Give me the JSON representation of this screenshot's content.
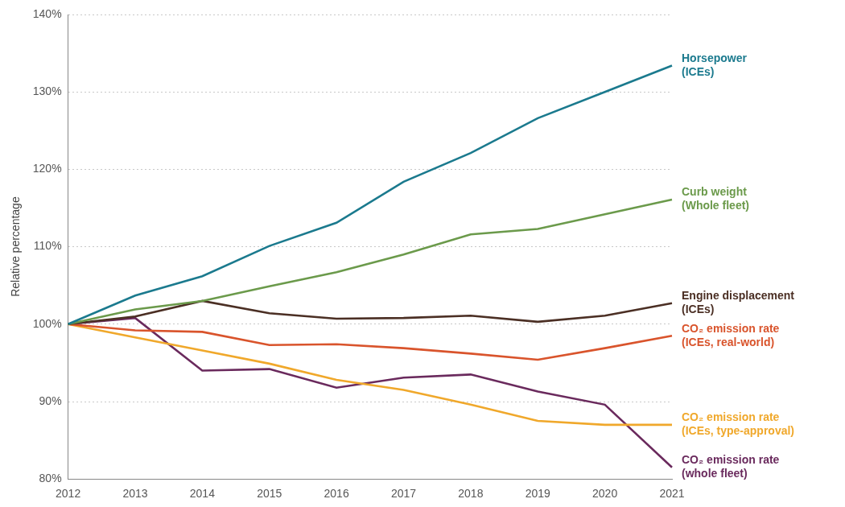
{
  "chart_data": {
    "type": "line",
    "y_label": "Relative percentage",
    "categories": [
      "2012",
      "2013",
      "2014",
      "2015",
      "2016",
      "2017",
      "2018",
      "2019",
      "2020",
      "2021"
    ],
    "series": [
      {
        "name": "Horsepower (ICEs)",
        "color": "#1b7a8e",
        "values": [
          100,
          103.7,
          106.2,
          110.1,
          113.1,
          118.4,
          122.1,
          126.6,
          130.0,
          133.4
        ]
      },
      {
        "name": "Curb weight (Whole fleet)",
        "color": "#6b9a4b",
        "values": [
          100,
          101.9,
          103.0,
          104.9,
          106.7,
          109.0,
          111.6,
          112.3,
          114.2,
          116.1
        ]
      },
      {
        "name": "Engine displacement (ICEs)",
        "color": "#4b2f24",
        "values": [
          100,
          101.0,
          103.0,
          101.4,
          100.7,
          100.8,
          101.1,
          100.3,
          101.1,
          102.7
        ]
      },
      {
        "name": "CO₂ emission rate (ICEs, real-world)",
        "color": "#d9542c",
        "values": [
          100,
          99.2,
          99.0,
          97.3,
          97.4,
          96.9,
          96.2,
          95.4,
          96.9,
          98.5
        ]
      },
      {
        "name": "CO₂ emission rate (ICEs, type-approval)",
        "color": "#f0a82b",
        "values": [
          100,
          98.3,
          96.6,
          94.9,
          92.8,
          91.5,
          89.6,
          87.5,
          87.0,
          87.0
        ]
      },
      {
        "name": "CO₂ emission rate (whole fleet)",
        "color": "#6a2a5d",
        "values": [
          100,
          100.8,
          94.0,
          94.2,
          91.8,
          93.1,
          93.5,
          91.3,
          89.6,
          81.5
        ]
      }
    ],
    "ylim": [
      80,
      140
    ],
    "yticks": [
      {
        "value": 80,
        "label": "80%"
      },
      {
        "value": 90,
        "label": "90%"
      },
      {
        "value": 100,
        "label": "100%"
      },
      {
        "value": 110,
        "label": "110%"
      },
      {
        "value": 120,
        "label": "120%"
      },
      {
        "value": 130,
        "label": "130%"
      },
      {
        "value": 140,
        "label": "140%"
      }
    ],
    "grid": true
  }
}
